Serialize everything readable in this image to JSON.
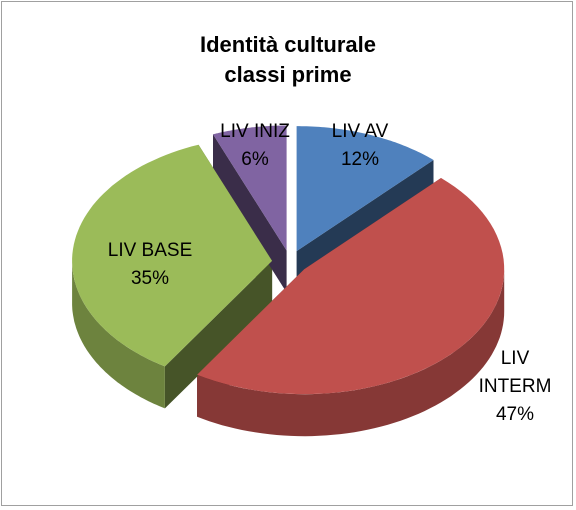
{
  "chart_data": {
    "type": "pie",
    "title": [
      "Identità culturale",
      "classi prime"
    ],
    "categories": [
      "LIV AV",
      "LIV INTERM",
      "LIV BASE",
      "LIV INIZ"
    ],
    "values": [
      12,
      47,
      35,
      6
    ],
    "value_labels": [
      "12%",
      "47%",
      "35%",
      "6%"
    ],
    "colors": [
      "#4f81bd",
      "#c0504d",
      "#9bbb59",
      "#8064a2"
    ]
  }
}
